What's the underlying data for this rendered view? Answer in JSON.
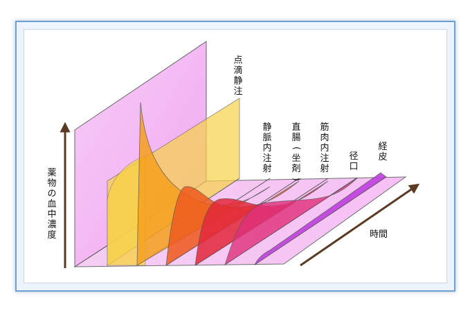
{
  "y_axis_label": "薬物の血中濃度",
  "x_axis_label": "時間",
  "routes": [
    {
      "label": "点滴静注",
      "color": "#f8d248"
    },
    {
      "label": "静脈内注射",
      "color": "#f6a01e"
    },
    {
      "label": "直腸(坐剤)",
      "color": "#ef5a1e"
    },
    {
      "label": "筋肉内注射",
      "color": "#e3283a"
    },
    {
      "label": "径口",
      "color": "#e0307a"
    },
    {
      "label": "経皮",
      "color": "#c040e0"
    }
  ],
  "background_panel_color": "#f3b8f3",
  "axis_color": "#5a3a22"
}
